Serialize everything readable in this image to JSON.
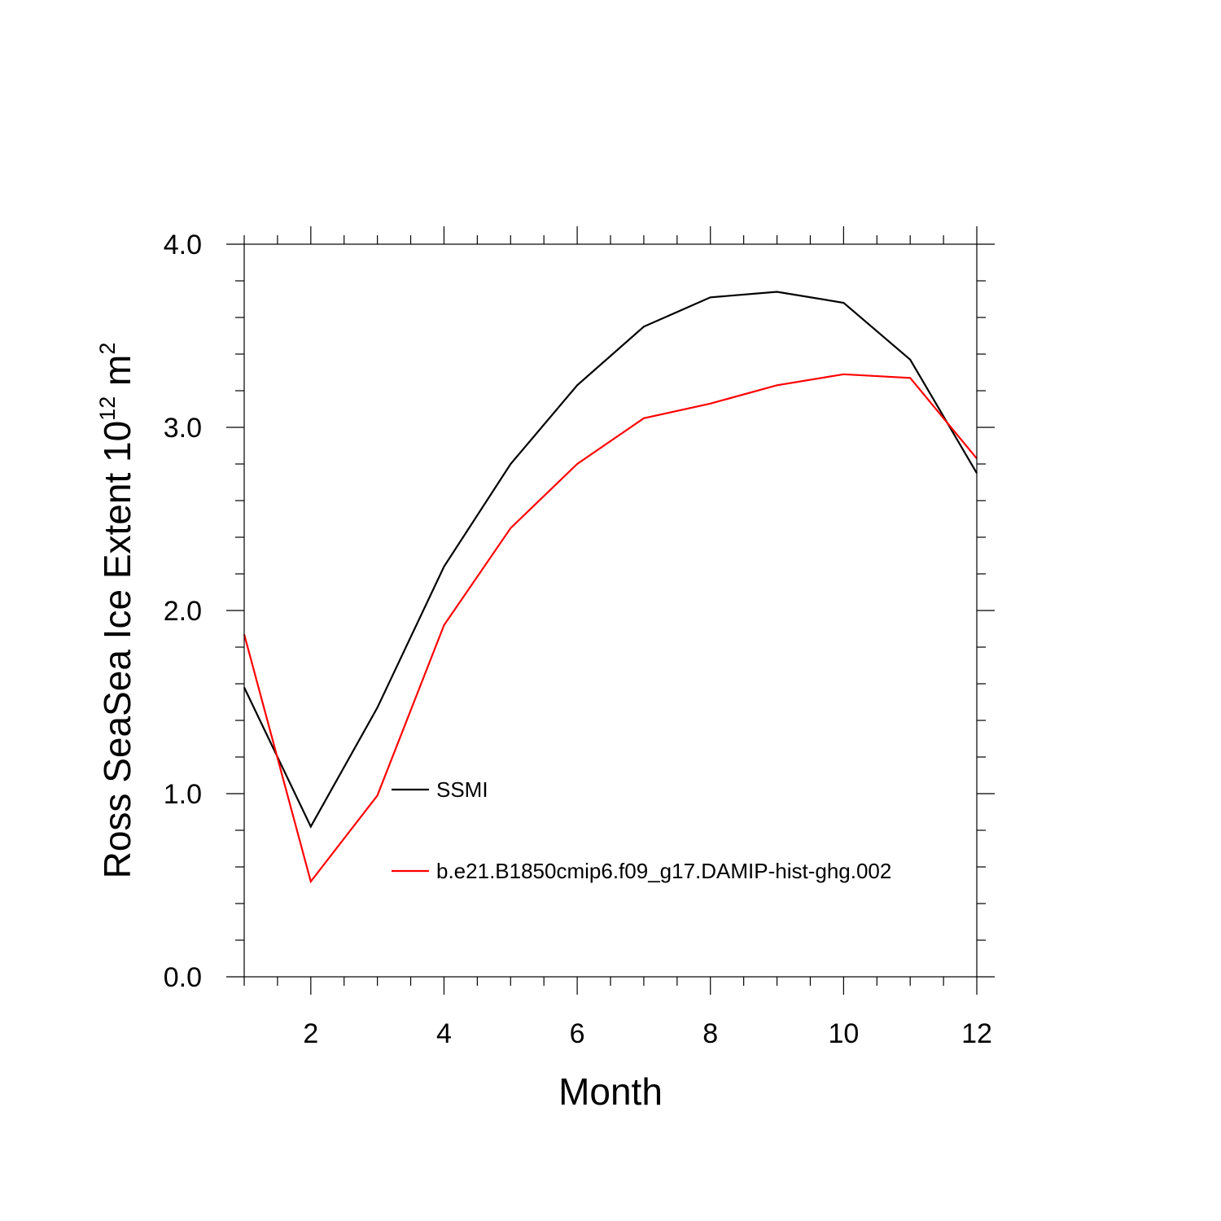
{
  "chart_data": {
    "type": "line",
    "x": [
      1,
      2,
      3,
      4,
      5,
      6,
      7,
      8,
      9,
      10,
      11,
      12
    ],
    "series": [
      {
        "name": "SSMI",
        "color": "#000000",
        "values": [
          1.58,
          0.82,
          1.47,
          2.24,
          2.8,
          3.23,
          3.55,
          3.71,
          3.74,
          3.68,
          3.37,
          2.75
        ]
      },
      {
        "name": "b.e21.B1850cmip6.f09_g17.DAMIP-hist-ghg.002",
        "color": "#ff0000",
        "values": [
          1.87,
          0.52,
          0.99,
          1.92,
          2.45,
          2.8,
          3.05,
          3.13,
          3.23,
          3.29,
          3.27,
          2.83
        ]
      }
    ],
    "xlim": [
      1,
      12
    ],
    "ylim": [
      0,
      4
    ],
    "xticks": [
      2,
      4,
      6,
      8,
      10,
      12
    ],
    "xtick_labels": [
      "2",
      "4",
      "6",
      "8",
      "10",
      "12"
    ],
    "yticks": [
      0,
      1,
      2,
      3,
      4
    ],
    "ytick_labels": [
      "0.0",
      "1.0",
      "2.0",
      "3.0",
      "4.0"
    ],
    "xlabel": "Month",
    "ylabel": {
      "text": "Ross SeaSea Ice Extent 10",
      "exp1": "12",
      "unit": " m",
      "exp2": "2"
    },
    "grid": false,
    "legend_position": "inside-lower-center"
  }
}
